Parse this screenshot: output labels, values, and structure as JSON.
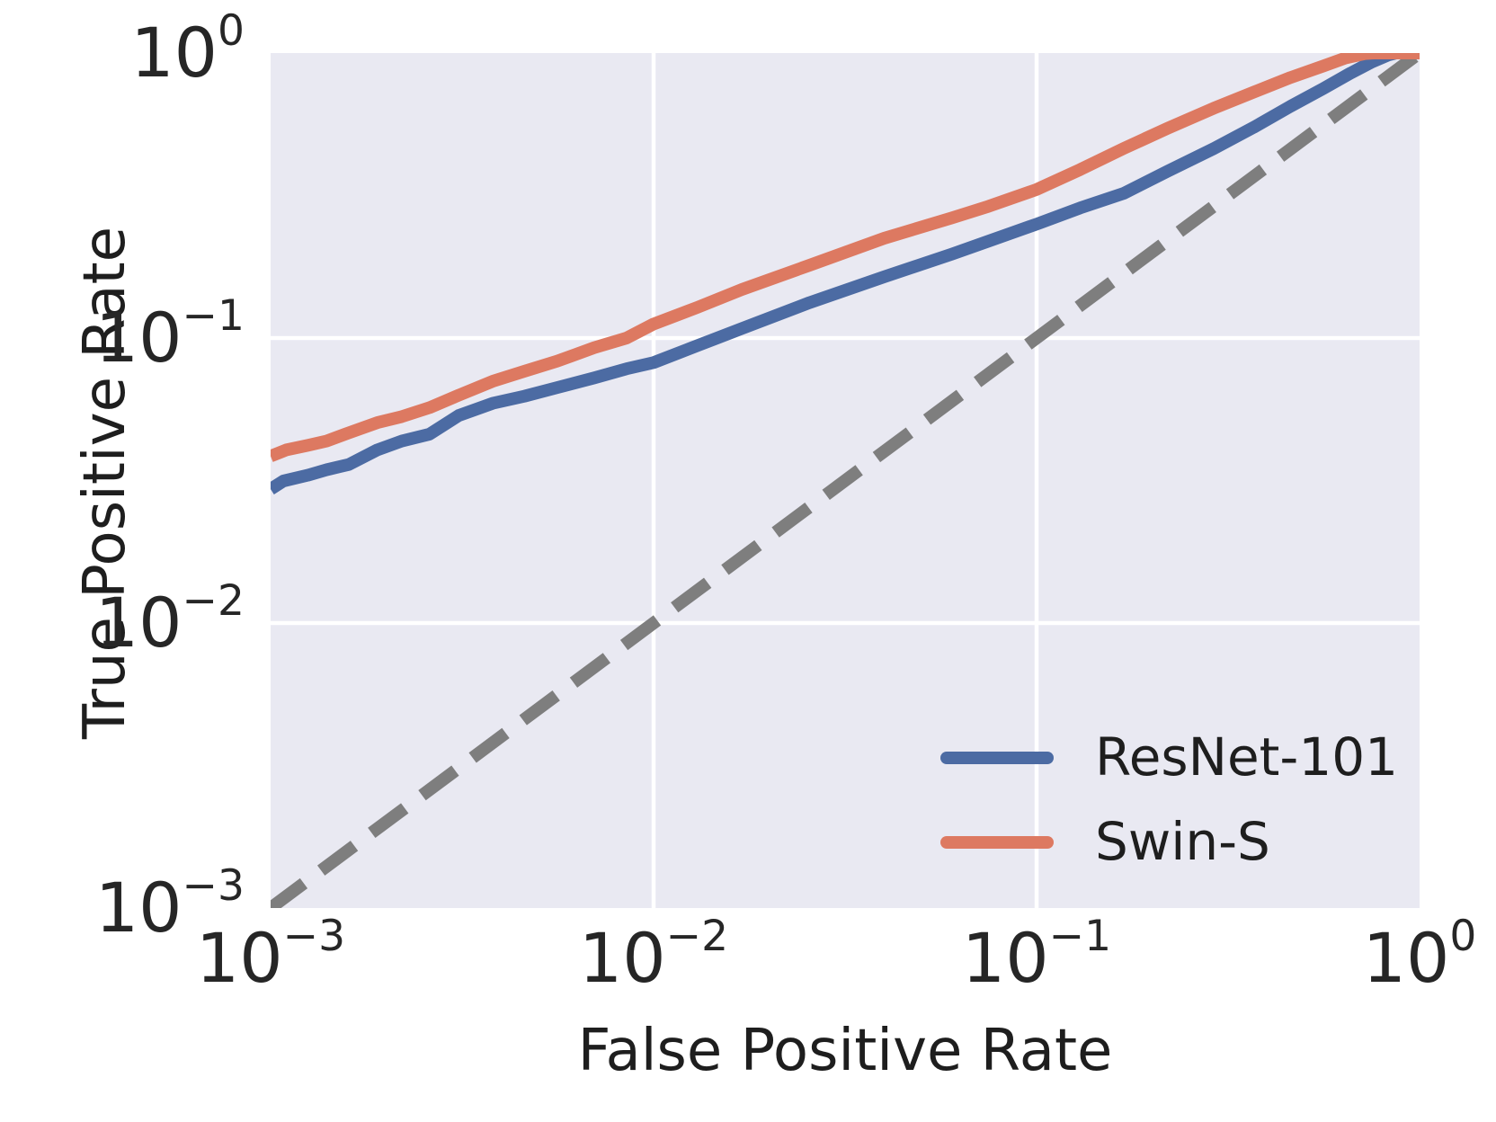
{
  "chart_data": {
    "type": "line",
    "title": "",
    "xlabel": "False Positive Rate",
    "ylabel": "True Positive Rate",
    "xscale": "log",
    "yscale": "log",
    "xlim": [
      0.001,
      1.0
    ],
    "ylim": [
      0.001,
      1.0
    ],
    "tick_base": "10",
    "x_tick_exponents": [
      "−3",
      "−2",
      "−1",
      "0"
    ],
    "y_tick_exponents": [
      "0",
      "−1",
      "−2",
      "−3"
    ],
    "grid": true,
    "background_color": "#e9e9f2",
    "grid_color": "#ffffff",
    "legend_position": "lower right",
    "series": [
      {
        "name": "ResNet-101",
        "color": "#4c6ba3",
        "style": "solid",
        "in_legend": true,
        "points": [
          [
            0.001,
            0.0295
          ],
          [
            0.00108,
            0.0315
          ],
          [
            0.00125,
            0.033
          ],
          [
            0.0014,
            0.0345
          ],
          [
            0.0016,
            0.036
          ],
          [
            0.0019,
            0.0405
          ],
          [
            0.0022,
            0.0435
          ],
          [
            0.0026,
            0.046
          ],
          [
            0.0031,
            0.0535
          ],
          [
            0.0038,
            0.059
          ],
          [
            0.0046,
            0.0625
          ],
          [
            0.0056,
            0.067
          ],
          [
            0.007,
            0.0725
          ],
          [
            0.0085,
            0.078
          ],
          [
            0.01,
            0.082
          ],
          [
            0.013,
            0.094
          ],
          [
            0.017,
            0.108
          ],
          [
            0.0255,
            0.133
          ],
          [
            0.04,
            0.164
          ],
          [
            0.06,
            0.197
          ],
          [
            0.075,
            0.219
          ],
          [
            0.1,
            0.251
          ],
          [
            0.13,
            0.286
          ],
          [
            0.169,
            0.322
          ],
          [
            0.22,
            0.385
          ],
          [
            0.29,
            0.462
          ],
          [
            0.37,
            0.55
          ],
          [
            0.46,
            0.65
          ],
          [
            0.56,
            0.75
          ],
          [
            0.66,
            0.85
          ],
          [
            0.75,
            0.93
          ],
          [
            0.83,
            0.985
          ],
          [
            0.87,
            1.0
          ],
          [
            1.0,
            1.0
          ]
        ]
      },
      {
        "name": "Swin-S",
        "color": "#dd7961",
        "style": "solid",
        "in_legend": true,
        "points": [
          [
            0.001,
            0.0385
          ],
          [
            0.0011,
            0.0405
          ],
          [
            0.00125,
            0.042
          ],
          [
            0.0014,
            0.0435
          ],
          [
            0.0016,
            0.0465
          ],
          [
            0.0019,
            0.0505
          ],
          [
            0.0022,
            0.053
          ],
          [
            0.0026,
            0.057
          ],
          [
            0.0031,
            0.063
          ],
          [
            0.0038,
            0.0705
          ],
          [
            0.0046,
            0.0765
          ],
          [
            0.0056,
            0.083
          ],
          [
            0.007,
            0.0925
          ],
          [
            0.0085,
            0.1
          ],
          [
            0.01,
            0.112
          ],
          [
            0.013,
            0.128
          ],
          [
            0.017,
            0.148
          ],
          [
            0.0255,
            0.18
          ],
          [
            0.04,
            0.224
          ],
          [
            0.06,
            0.264
          ],
          [
            0.075,
            0.29
          ],
          [
            0.1,
            0.332
          ],
          [
            0.13,
            0.39
          ],
          [
            0.169,
            0.463
          ],
          [
            0.22,
            0.545
          ],
          [
            0.29,
            0.64
          ],
          [
            0.37,
            0.73
          ],
          [
            0.46,
            0.82
          ],
          [
            0.56,
            0.9
          ],
          [
            0.64,
            0.96
          ],
          [
            0.72,
            0.995
          ],
          [
            0.76,
            1.0
          ],
          [
            1.0,
            1.0
          ]
        ]
      },
      {
        "name": "chance",
        "color": "#7e7e7e",
        "style": "dashed",
        "in_legend": false,
        "points": [
          [
            0.001,
            0.001
          ],
          [
            1.0,
            1.0
          ]
        ]
      }
    ]
  },
  "legend": {
    "entries": [
      {
        "label": "ResNet-101",
        "color": "#4c6ba3"
      },
      {
        "label": "Swin-S",
        "color": "#dd7961"
      }
    ]
  }
}
